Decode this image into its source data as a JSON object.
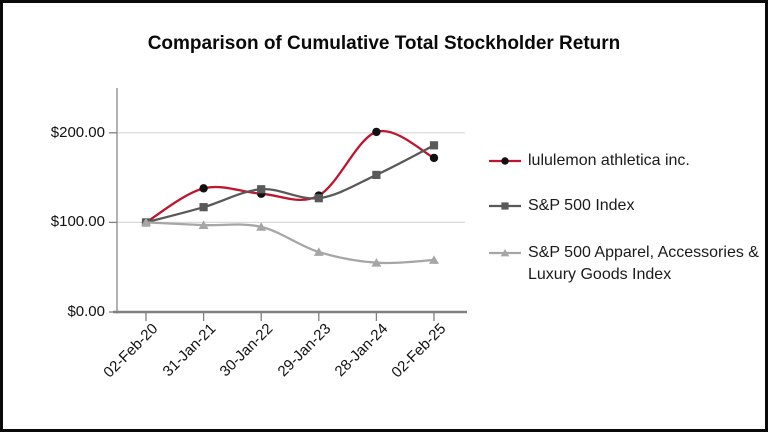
{
  "chart_data": {
    "type": "line",
    "title": "Comparison of Cumulative Total Stockholder Return",
    "x_labels": [
      "02-Feb-20",
      "31-Jan-21",
      "30-Jan-22",
      "29-Jan-23",
      "28-Jan-24",
      "02-Feb-25"
    ],
    "y_ticks": [
      {
        "label": "$0.00",
        "value": 0
      },
      {
        "label": "$100.00",
        "value": 100
      },
      {
        "label": "$200.00",
        "value": 200
      }
    ],
    "ylim": [
      0,
      250
    ],
    "grid": "horizontal",
    "legend_position": "right",
    "smoothed_lines": true,
    "colors": {
      "gridline": "#d9d9d9",
      "axis": "#808080",
      "text": "#111111"
    },
    "series": [
      {
        "name": "lululemon athletica inc.",
        "marker": "circle",
        "line_color": "#c0152f",
        "marker_color": "#111111",
        "values": [
          100,
          138,
          132,
          130,
          201,
          172
        ]
      },
      {
        "name": "S&P 500 Index",
        "marker": "square",
        "line_color": "#595959",
        "marker_color": "#595959",
        "values": [
          100,
          117,
          137,
          127,
          153,
          186
        ]
      },
      {
        "name": "S&P 500 Apparel, Accessories & Luxury Goods Index",
        "marker": "triangle",
        "line_color": "#a6a6a6",
        "marker_color": "#a6a6a6",
        "values": [
          100,
          97,
          95,
          67,
          55,
          58
        ]
      }
    ]
  }
}
